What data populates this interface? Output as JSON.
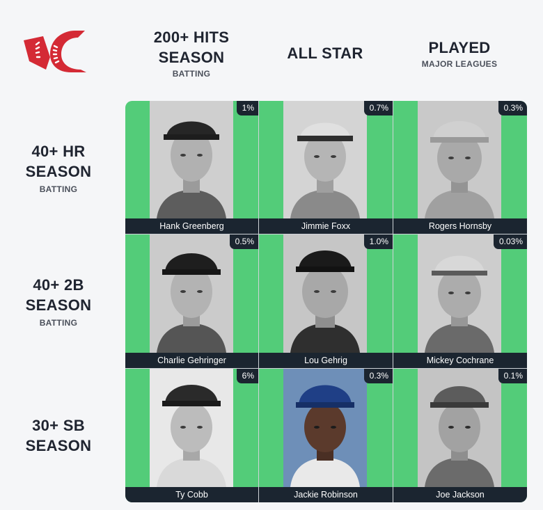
{
  "columns": [
    {
      "main": "200+ HITS SEASON",
      "sub": "BATTING"
    },
    {
      "main": "ALL STAR",
      "sub": ""
    },
    {
      "main": "PLAYED",
      "sub": "MAJOR LEAGUES"
    }
  ],
  "rows": [
    {
      "main": "40+ HR SEASON",
      "sub": "BATTING"
    },
    {
      "main": "40+ 2B SEASON",
      "sub": "BATTING"
    },
    {
      "main": "30+ SB SEASON",
      "sub": ""
    }
  ],
  "cells": [
    [
      {
        "name": "Hank Greenberg",
        "pct": "1%"
      },
      {
        "name": "Jimmie Foxx",
        "pct": "0.7%"
      },
      {
        "name": "Rogers Hornsby",
        "pct": "0.3%"
      }
    ],
    [
      {
        "name": "Charlie Gehringer",
        "pct": "0.5%"
      },
      {
        "name": "Lou Gehrig",
        "pct": "1.0%"
      },
      {
        "name": "Mickey Cochrane",
        "pct": "0.03%"
      }
    ],
    [
      {
        "name": "Ty Cobb",
        "pct": "6%"
      },
      {
        "name": "Jackie Robinson",
        "pct": "0.3%"
      },
      {
        "name": "Joe Jackson",
        "pct": "0.1%"
      }
    ]
  ],
  "colors": {
    "cell_bg": "#53cc79",
    "bar_bg": "#1b2530",
    "logo_red": "#d42a35"
  },
  "icons": {
    "logo": "baseball-logo-icon",
    "photo": "player-photo"
  }
}
